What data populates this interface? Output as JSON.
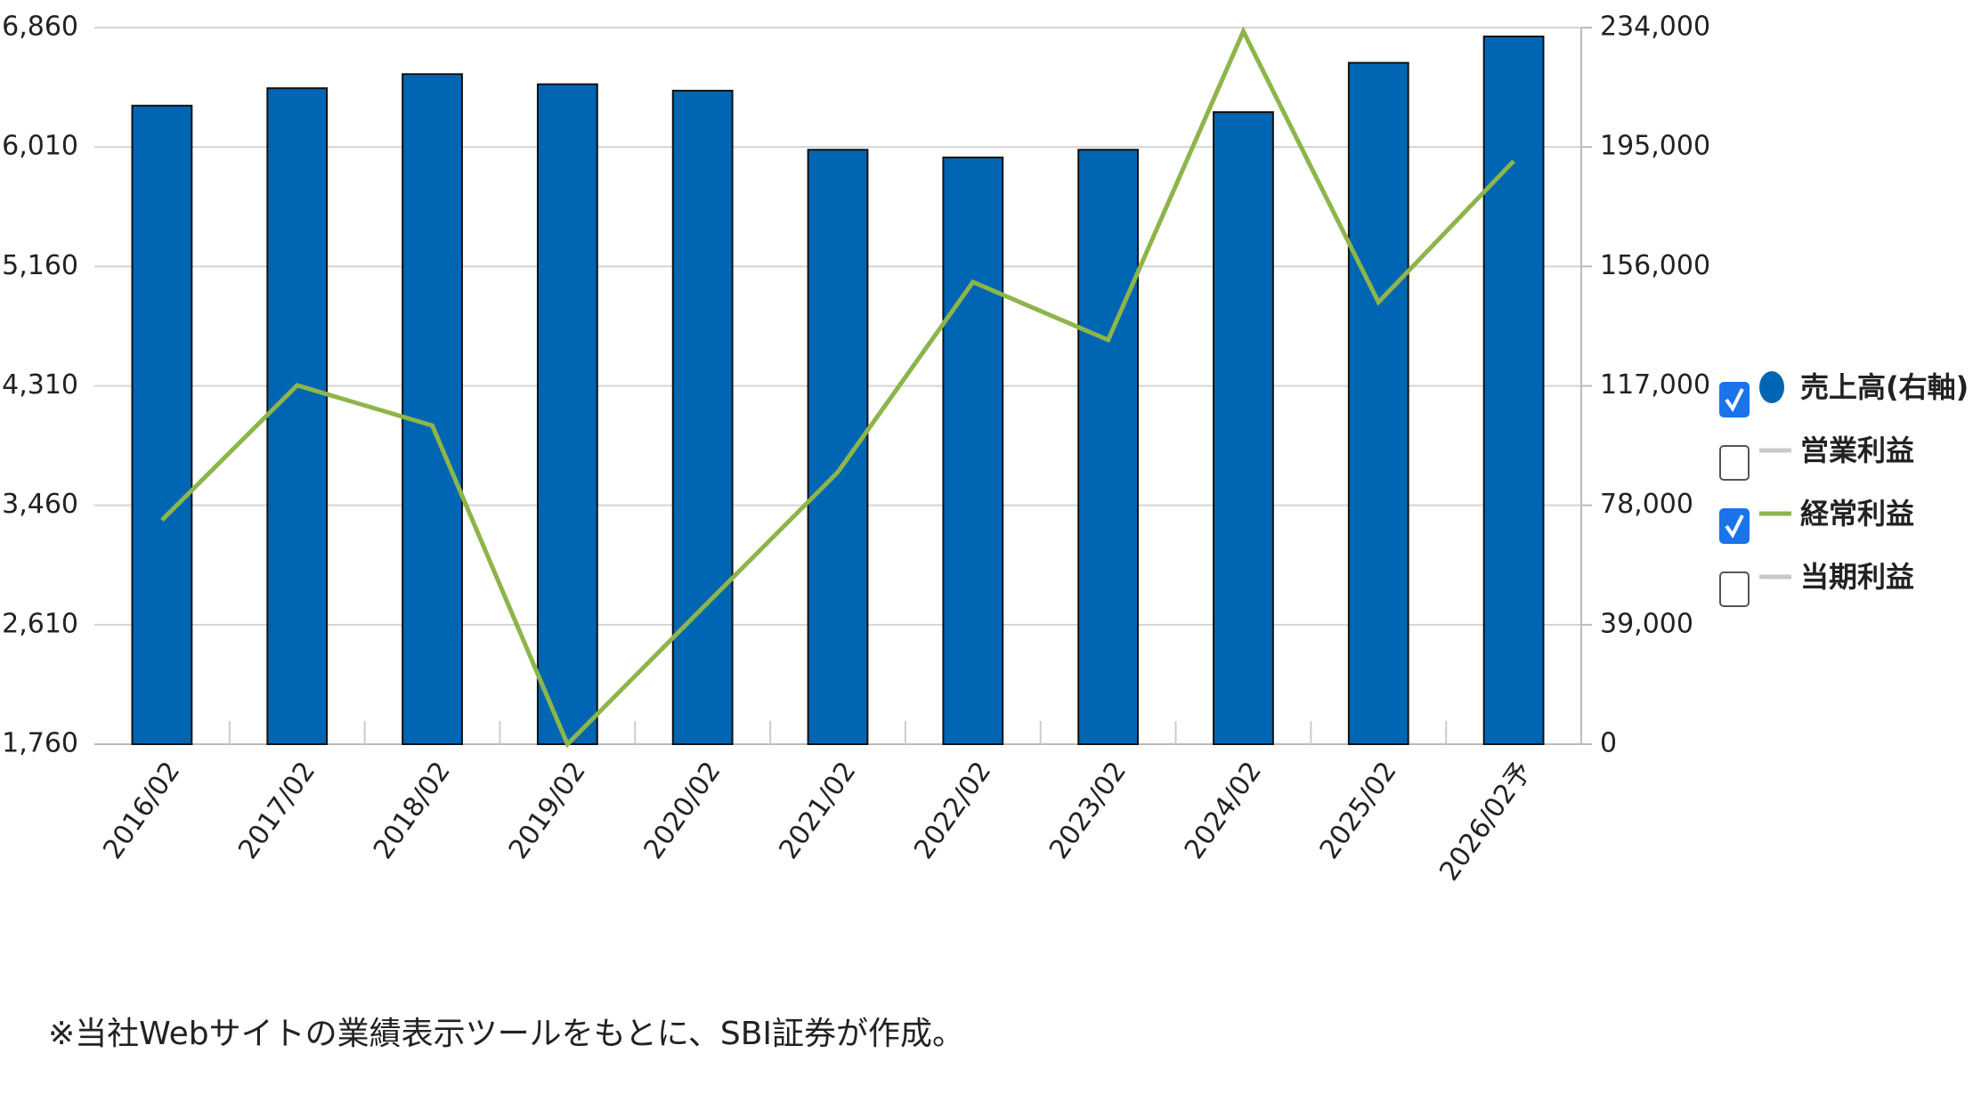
{
  "chart_data": {
    "type": "bar-line",
    "categories": [
      "2016/02",
      "2017/02",
      "2018/02",
      "2019/02",
      "2020/02",
      "2021/02",
      "2022/02",
      "2023/02",
      "2024/02",
      "2025/02",
      "2026/02予"
    ],
    "series": [
      {
        "name": "売上高(右軸)",
        "type": "bar",
        "axis": "y2",
        "color": "#0066b3",
        "checked": true,
        "marker": "circle",
        "values": [
          208500,
          214200,
          218800,
          215500,
          213400,
          194100,
          191600,
          194100,
          206400,
          222500,
          231100
        ]
      },
      {
        "name": "営業利益",
        "type": "line",
        "color": "#c8c8c8",
        "checked": false,
        "marker": "line"
      },
      {
        "name": "経常利益",
        "type": "line",
        "axis": "y",
        "color": "#8db54a",
        "checked": true,
        "marker": "line",
        "values": [
          3355,
          4314,
          4028,
          1760,
          2730,
          3696,
          5049,
          4637,
          6833,
          4906,
          5910
        ]
      },
      {
        "name": "当期利益",
        "type": "line",
        "color": "#c8c8c8",
        "checked": false,
        "marker": "line"
      }
    ],
    "ylim": [
      1760,
      6860
    ],
    "yticks": [
      {
        "value": 1760,
        "label": "1,760"
      },
      {
        "value": 2610,
        "label": "2,610"
      },
      {
        "value": 3460,
        "label": "3,460"
      },
      {
        "value": 4310,
        "label": "4,310"
      },
      {
        "value": 5160,
        "label": "5,160"
      },
      {
        "value": 6010,
        "label": "6,010"
      },
      {
        "value": 6860,
        "label": "6,860"
      }
    ],
    "y2lim": [
      0,
      234000
    ],
    "y2ticks": [
      0,
      {
        "value": 39000,
        "label": "39,000"
      },
      {
        "value": 78000,
        "label": "78,000"
      },
      {
        "value": 117000,
        "label": "117,000"
      },
      {
        "value": 156000,
        "label": "156,000"
      },
      {
        "value": 195000,
        "label": "195,000"
      },
      {
        "value": 234000,
        "label": "234,000"
      }
    ],
    "grid": true,
    "legend": "right",
    "footnote": "※当社Webサイトの業績表示ツールをもとに、SBI証券が作成。"
  }
}
